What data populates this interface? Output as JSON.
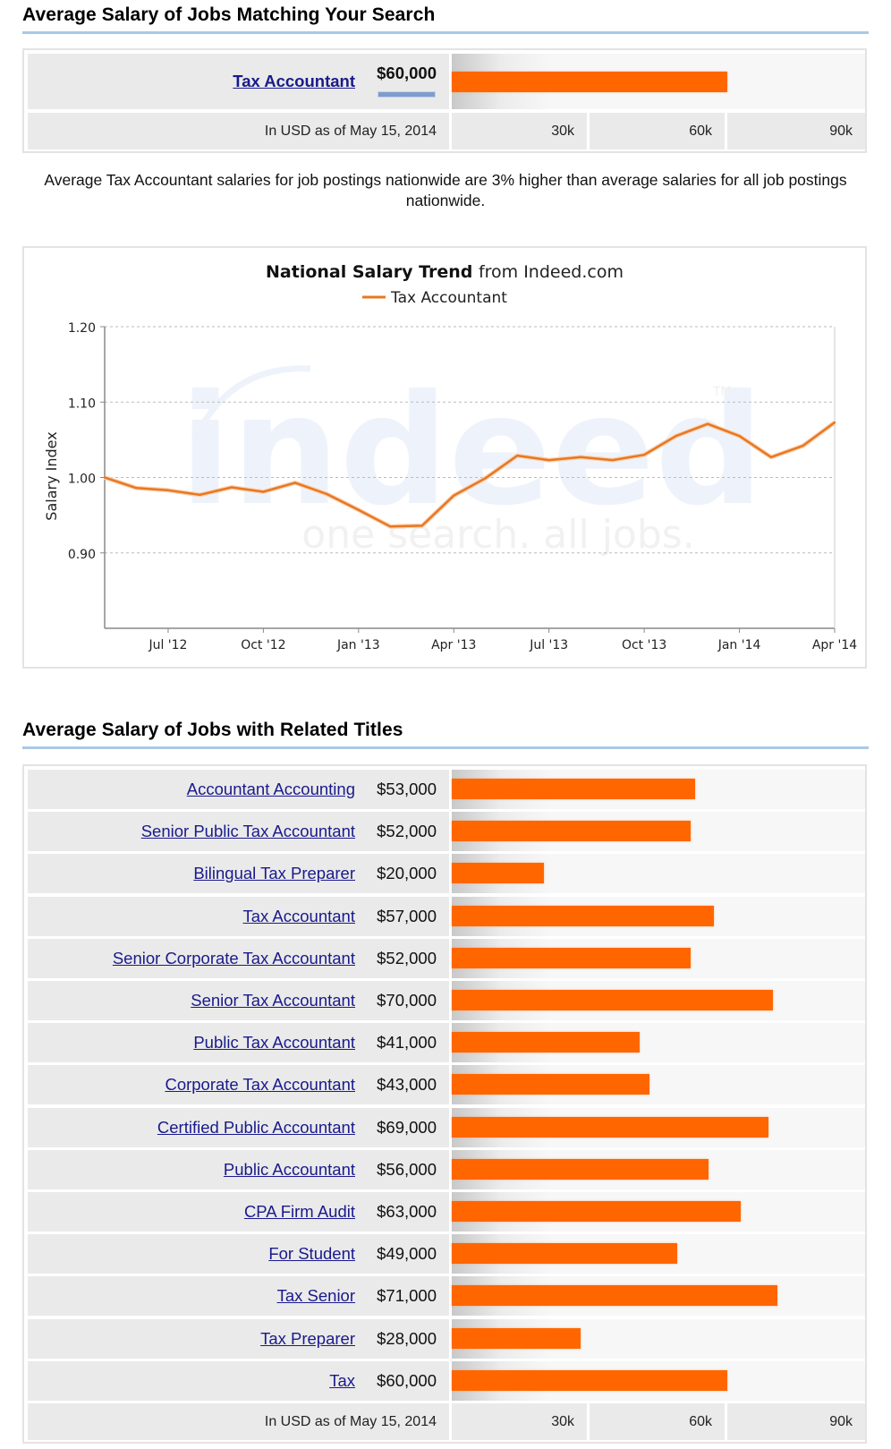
{
  "section1": {
    "title": "Average Salary of Jobs Matching Your Search",
    "job": {
      "title": "Tax Accountant",
      "salary_label": "$60,000",
      "salary": 60000
    },
    "footer_note": "In USD as of May 15, 2014",
    "axis_ticks": [
      "30k",
      "60k",
      "90k"
    ]
  },
  "description": "Average Tax Accountant salaries for job postings nationwide are 3% higher than average salaries for all job postings nationwide.",
  "colors": {
    "bar": "#ff6600",
    "link": "#1a1a8c",
    "rule": "#a9c8e6",
    "line": "#e87722",
    "underline_bar": "#7e9ccd"
  },
  "chart_data": {
    "type": "line",
    "title_bold": "National Salary Trend",
    "title_rest": "from Indeed.com",
    "legend": [
      "Tax Accountant"
    ],
    "legend_position": "top-center",
    "xlabel": "",
    "ylabel": "Salary Index",
    "ylim": [
      0.8,
      1.2
    ],
    "yticks": [
      0.9,
      1.0,
      1.1,
      1.2
    ],
    "ytick_labels": [
      "0.90",
      "1.00",
      "1.10",
      "1.20"
    ],
    "xtick_labels": [
      "Jul '12",
      "Oct '12",
      "Jan '13",
      "Apr '13",
      "Jul '13",
      "Oct '13",
      "Jan '14",
      "Apr '14"
    ],
    "x_start": "May '12",
    "x_months": 23,
    "xtick_month_offsets": [
      2,
      5,
      8,
      11,
      14,
      17,
      20,
      23
    ],
    "grid": true,
    "watermark": {
      "brand": "indeed",
      "tagline": "one search. all jobs.",
      "tm": "TM"
    },
    "series": [
      {
        "name": "Tax Accountant",
        "values": [
          1.0,
          0.986,
          0.983,
          0.977,
          0.987,
          0.981,
          0.993,
          0.978,
          0.957,
          0.935,
          0.936,
          0.976,
          0.999,
          1.029,
          1.023,
          1.027,
          1.023,
          1.03,
          1.055,
          1.071,
          1.055,
          1.027,
          1.042,
          1.073
        ]
      }
    ]
  },
  "section2": {
    "title": "Average Salary of Jobs with Related Titles",
    "footer_note": "In USD as of May 15, 2014",
    "axis_ticks": [
      "30k",
      "60k",
      "90k"
    ],
    "axis_max": 90000,
    "jobs": [
      {
        "title": "Accountant Accounting",
        "salary_label": "$53,000",
        "salary": 53000
      },
      {
        "title": "Senior Public Tax Accountant",
        "salary_label": "$52,000",
        "salary": 52000
      },
      {
        "title": "Bilingual Tax Preparer",
        "salary_label": "$20,000",
        "salary": 20000
      },
      {
        "title": "Tax Accountant",
        "salary_label": "$57,000",
        "salary": 57000
      },
      {
        "title": "Senior Corporate Tax Accountant",
        "salary_label": "$52,000",
        "salary": 52000
      },
      {
        "title": "Senior Tax Accountant",
        "salary_label": "$70,000",
        "salary": 70000
      },
      {
        "title": "Public Tax Accountant",
        "salary_label": "$41,000",
        "salary": 41000
      },
      {
        "title": "Corporate Tax Accountant",
        "salary_label": "$43,000",
        "salary": 43000
      },
      {
        "title": "Certified Public Accountant",
        "salary_label": "$69,000",
        "salary": 69000
      },
      {
        "title": "Public Accountant",
        "salary_label": "$56,000",
        "salary": 56000
      },
      {
        "title": "CPA Firm Audit",
        "salary_label": "$63,000",
        "salary": 63000
      },
      {
        "title": "For Student",
        "salary_label": "$49,000",
        "salary": 49000
      },
      {
        "title": "Tax Senior",
        "salary_label": "$71,000",
        "salary": 71000
      },
      {
        "title": "Tax Preparer",
        "salary_label": "$28,000",
        "salary": 28000
      },
      {
        "title": "Tax",
        "salary_label": "$60,000",
        "salary": 60000
      }
    ]
  }
}
